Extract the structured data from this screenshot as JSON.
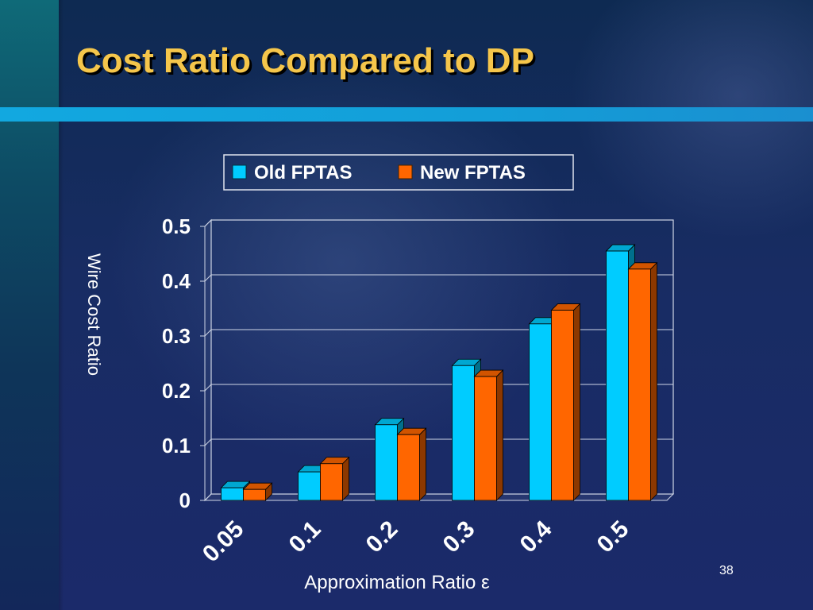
{
  "slide": {
    "title": "Cost Ratio Compared to DP",
    "number": "38"
  },
  "colors": {
    "title": "#f5c64b",
    "accent_bar": "#12a8e0",
    "old_series": "#00ccff",
    "new_series": "#ff6600"
  },
  "chart_data": {
    "type": "bar",
    "style": "3d-clustered-column",
    "categories": [
      "0.05",
      "0.1",
      "0.2",
      "0.3",
      "0.4",
      "0.5"
    ],
    "series": [
      {
        "name": "Old FPTAS",
        "color": "#00ccff",
        "values": [
          0.023,
          0.052,
          0.138,
          0.246,
          0.322,
          0.455
        ]
      },
      {
        "name": "New FPTAS",
        "color": "#ff6600",
        "values": [
          0.02,
          0.067,
          0.12,
          0.226,
          0.347,
          0.422
        ]
      }
    ],
    "xlabel": "Approximation Ratio ε",
    "ylabel": "Wire Cost Ratio",
    "ylim": [
      0,
      0.5
    ],
    "yticks": [
      "0",
      "0.1",
      "0.2",
      "0.3",
      "0.4",
      "0.5"
    ],
    "grid": true,
    "legend": "top-center"
  }
}
